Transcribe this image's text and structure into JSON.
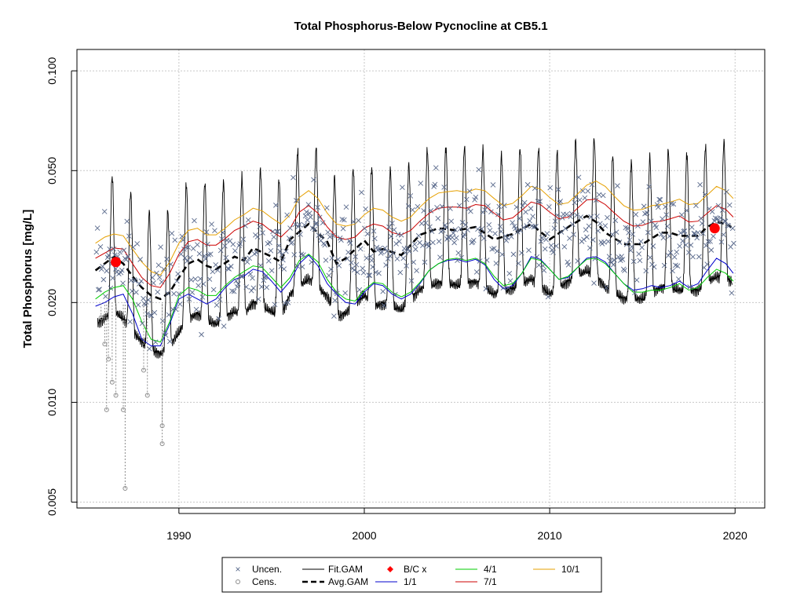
{
  "chart_data": {
    "type": "scatter",
    "title": "Total Phosphorus-Below Pycnocline at CB5.1",
    "xlabel": "",
    "ylabel": "Total Phosphorus [mg/L]",
    "y_scale": "log",
    "xlim": [
      1984.5,
      2021.6
    ],
    "ylim": [
      0.0048,
      0.116
    ],
    "x_ticks": [
      1990,
      2000,
      2010,
      2020
    ],
    "x_tick_labels": [
      "1990",
      "2000",
      "2010",
      "2020"
    ],
    "y_ticks": [
      0.005,
      0.01,
      0.02,
      0.05,
      0.1
    ],
    "y_tick_labels": [
      "0.005",
      "0.010",
      "0.020",
      "0.050",
      "0.100"
    ],
    "grid": true,
    "legend_placement": "bottom-center",
    "legend": {
      "uncen": "Uncen.",
      "cens": "Cens.",
      "fitgam": "Fit.GAM",
      "avggam": "Avg.GAM",
      "bcx": "B/C x",
      "d11": "1/1",
      "d41": "4/1",
      "d71": "7/1",
      "d101": "10/1"
    },
    "colors": {
      "uncen": "#5a6a8c",
      "cens": "#8c8c8c",
      "fitgam": "#000000",
      "avggam": "#000000",
      "bcx": "#ff0000",
      "d11": "#0000cc",
      "d41": "#00cc00",
      "d71": "#cc0000",
      "d101": "#e6a000",
      "grid": "#c8c8c8"
    },
    "bc_points": [
      {
        "x": 1986.6,
        "y": 0.0265
      },
      {
        "x": 2018.9,
        "y": 0.0335
      }
    ],
    "avg_gam": {
      "x": [
        1985.5,
        1986.5,
        1987.0,
        1987.5,
        1988.0,
        1988.5,
        1989.0,
        1989.5,
        1990.0,
        1990.5,
        1991.0,
        1991.5,
        1992.0,
        1993.0,
        1993.5,
        1994.0,
        1995.0,
        1995.5,
        1996.0,
        1997.0,
        1998.0,
        1998.5,
        1999.0,
        2000.0,
        2000.5,
        2001.0,
        2002.0,
        2003.0,
        2004.0,
        2005.0,
        2006.0,
        2007.0,
        2008.0,
        2009.0,
        2010.0,
        2011.0,
        2012.0,
        2012.5,
        2013.0,
        2014.0,
        2015.0,
        2016.0,
        2016.5,
        2017.0,
        2018.0,
        2018.5,
        2019.0,
        2019.5,
        2019.8
      ],
      "y": [
        0.025,
        0.0275,
        0.0262,
        0.024,
        0.0222,
        0.021,
        0.0205,
        0.0215,
        0.0238,
        0.0262,
        0.027,
        0.0258,
        0.0252,
        0.0275,
        0.0268,
        0.0292,
        0.0275,
        0.0265,
        0.031,
        0.0345,
        0.0305,
        0.0262,
        0.0272,
        0.0308,
        0.0285,
        0.029,
        0.0278,
        0.032,
        0.0335,
        0.033,
        0.0338,
        0.031,
        0.0322,
        0.0345,
        0.031,
        0.0338,
        0.0365,
        0.035,
        0.0325,
        0.03,
        0.03,
        0.0325,
        0.0325,
        0.0318,
        0.0318,
        0.0338,
        0.035,
        0.0345,
        0.0338
      ]
    },
    "season_curves": [
      {
        "name": "1/1",
        "x": [
          1985.5,
          1986.0,
          1986.5,
          1987.0,
          1987.5,
          1988.0,
          1988.5,
          1989.0,
          1989.5,
          1990.0,
          1990.5,
          1991.0,
          1991.5,
          1992.0,
          1992.5,
          1993.0,
          1993.5,
          1994.0,
          1994.5,
          1995.0,
          1995.5,
          1996.0,
          1996.5,
          1997.0,
          1997.5,
          1998.0,
          1998.5,
          1999.0,
          1999.5,
          2000.0,
          2000.5,
          2001.0,
          2001.5,
          2002.0,
          2002.5,
          2003.0,
          2003.5,
          2004.0,
          2004.5,
          2005.0,
          2005.5,
          2006.0,
          2006.5,
          2007.0,
          2007.5,
          2008.0,
          2008.5,
          2009.0,
          2009.5,
          2010.0,
          2010.5,
          2011.0,
          2011.5,
          2012.0,
          2012.5,
          2013.0,
          2013.5,
          2014.0,
          2014.5,
          2015.0,
          2015.5,
          2016.0,
          2016.5,
          2017.0,
          2017.5,
          2018.0,
          2018.5,
          2019.0,
          2019.5,
          2019.9
        ],
        "y": [
          0.0195,
          0.02,
          0.0208,
          0.0212,
          0.0185,
          0.0155,
          0.0148,
          0.0148,
          0.0172,
          0.0205,
          0.0212,
          0.0205,
          0.0198,
          0.0205,
          0.0222,
          0.0235,
          0.024,
          0.0252,
          0.0248,
          0.0232,
          0.0215,
          0.0232,
          0.0262,
          0.0278,
          0.0258,
          0.0228,
          0.0212,
          0.02,
          0.0198,
          0.0215,
          0.0228,
          0.0225,
          0.0212,
          0.0205,
          0.0212,
          0.0228,
          0.025,
          0.0262,
          0.0268,
          0.027,
          0.0265,
          0.027,
          0.026,
          0.0235,
          0.022,
          0.0225,
          0.0245,
          0.0275,
          0.027,
          0.0252,
          0.0235,
          0.0238,
          0.0255,
          0.0272,
          0.0275,
          0.0265,
          0.0245,
          0.0228,
          0.0218,
          0.022,
          0.0225,
          0.0222,
          0.0225,
          0.0232,
          0.0222,
          0.0228,
          0.025,
          0.0272,
          0.0262,
          0.0245
        ]
      },
      {
        "name": "4/1",
        "x": [
          1985.5,
          1986.0,
          1986.5,
          1987.0,
          1987.5,
          1988.0,
          1988.5,
          1989.0,
          1989.5,
          1990.0,
          1990.5,
          1991.0,
          1991.5,
          1992.0,
          1992.5,
          1993.0,
          1993.5,
          1994.0,
          1994.5,
          1995.0,
          1995.5,
          1996.0,
          1996.5,
          1997.0,
          1997.5,
          1998.0,
          1998.5,
          1999.0,
          1999.5,
          2000.0,
          2000.5,
          2001.0,
          2001.5,
          2002.0,
          2002.5,
          2003.0,
          2003.5,
          2004.0,
          2004.5,
          2005.0,
          2005.5,
          2006.0,
          2006.5,
          2007.0,
          2007.5,
          2008.0,
          2008.5,
          2009.0,
          2009.5,
          2010.0,
          2010.5,
          2011.0,
          2011.5,
          2012.0,
          2012.5,
          2013.0,
          2013.5,
          2014.0,
          2014.5,
          2015.0,
          2015.5,
          2016.0,
          2016.5,
          2017.0,
          2017.5,
          2018.0,
          2018.5,
          2019.0,
          2019.5,
          2019.9
        ],
        "y": [
          0.0205,
          0.0215,
          0.0222,
          0.0225,
          0.0205,
          0.0175,
          0.0155,
          0.0152,
          0.0175,
          0.021,
          0.0222,
          0.0218,
          0.021,
          0.021,
          0.0225,
          0.0238,
          0.0248,
          0.0258,
          0.0255,
          0.0238,
          0.0222,
          0.0238,
          0.0268,
          0.028,
          0.0265,
          0.0235,
          0.0215,
          0.0205,
          0.0202,
          0.0218,
          0.023,
          0.0228,
          0.0215,
          0.0208,
          0.0215,
          0.023,
          0.025,
          0.0262,
          0.027,
          0.0272,
          0.0268,
          0.0272,
          0.0262,
          0.024,
          0.0225,
          0.0228,
          0.0245,
          0.0272,
          0.0268,
          0.0252,
          0.0235,
          0.024,
          0.0255,
          0.027,
          0.0272,
          0.0262,
          0.0245,
          0.0228,
          0.0215,
          0.0215,
          0.0218,
          0.0218,
          0.0222,
          0.0228,
          0.0218,
          0.0222,
          0.0238,
          0.0252,
          0.0245,
          0.0232
        ]
      },
      {
        "name": "7/1",
        "x": [
          1985.5,
          1986.0,
          1986.5,
          1987.0,
          1987.5,
          1988.0,
          1988.5,
          1989.0,
          1989.5,
          1990.0,
          1990.5,
          1991.0,
          1991.5,
          1992.0,
          1992.5,
          1993.0,
          1993.5,
          1994.0,
          1994.5,
          1995.0,
          1995.5,
          1996.0,
          1996.5,
          1997.0,
          1997.5,
          1998.0,
          1998.5,
          1999.0,
          1999.5,
          2000.0,
          2000.5,
          2001.0,
          2001.5,
          2002.0,
          2002.5,
          2003.0,
          2003.5,
          2004.0,
          2004.5,
          2005.0,
          2005.5,
          2006.0,
          2006.5,
          2007.0,
          2007.5,
          2008.0,
          2008.5,
          2009.0,
          2009.5,
          2010.0,
          2010.5,
          2011.0,
          2011.5,
          2012.0,
          2012.5,
          2013.0,
          2013.5,
          2014.0,
          2014.5,
          2015.0,
          2015.5,
          2016.0,
          2016.5,
          2017.0,
          2017.5,
          2018.0,
          2018.5,
          2019.0,
          2019.5,
          2019.9
        ],
        "y": [
          0.0272,
          0.0282,
          0.0292,
          0.029,
          0.0262,
          0.0238,
          0.0225,
          0.0222,
          0.0245,
          0.028,
          0.0305,
          0.031,
          0.0298,
          0.0298,
          0.0312,
          0.033,
          0.034,
          0.0352,
          0.0345,
          0.0328,
          0.0315,
          0.0335,
          0.0375,
          0.0392,
          0.0372,
          0.0338,
          0.0315,
          0.031,
          0.0315,
          0.0335,
          0.0345,
          0.034,
          0.0325,
          0.032,
          0.033,
          0.0352,
          0.0372,
          0.0385,
          0.0388,
          0.0388,
          0.0385,
          0.0395,
          0.0392,
          0.0372,
          0.0355,
          0.036,
          0.038,
          0.0402,
          0.0395,
          0.0375,
          0.0358,
          0.0362,
          0.0385,
          0.0408,
          0.041,
          0.0395,
          0.0372,
          0.0352,
          0.034,
          0.0342,
          0.035,
          0.0352,
          0.0358,
          0.0365,
          0.035,
          0.0352,
          0.0372,
          0.0392,
          0.0382,
          0.0362
        ]
      },
      {
        "name": "10/1",
        "x": [
          1985.5,
          1986.0,
          1986.5,
          1987.0,
          1987.5,
          1988.0,
          1988.5,
          1989.0,
          1989.5,
          1990.0,
          1990.5,
          1991.0,
          1991.5,
          1992.0,
          1992.5,
          1993.0,
          1993.5,
          1994.0,
          1994.5,
          1995.0,
          1995.5,
          1996.0,
          1996.5,
          1997.0,
          1997.5,
          1998.0,
          1998.5,
          1999.0,
          1999.5,
          2000.0,
          2000.5,
          2001.0,
          2001.5,
          2002.0,
          2002.5,
          2003.0,
          2003.5,
          2004.0,
          2004.5,
          2005.0,
          2005.5,
          2006.0,
          2006.5,
          2007.0,
          2007.5,
          2008.0,
          2008.5,
          2009.0,
          2009.5,
          2010.0,
          2010.5,
          2011.0,
          2011.5,
          2012.0,
          2012.5,
          2013.0,
          2013.5,
          2014.0,
          2014.5,
          2015.0,
          2015.5,
          2016.0,
          2016.5,
          2017.0,
          2017.5,
          2018.0,
          2018.5,
          2019.0,
          2019.5,
          2019.9
        ],
        "y": [
          0.0302,
          0.0315,
          0.0322,
          0.0318,
          0.029,
          0.0265,
          0.0248,
          0.0242,
          0.0265,
          0.0302,
          0.033,
          0.0335,
          0.032,
          0.032,
          0.0335,
          0.0355,
          0.0368,
          0.0385,
          0.0378,
          0.036,
          0.0345,
          0.0368,
          0.0415,
          0.0435,
          0.0412,
          0.0372,
          0.0345,
          0.034,
          0.0345,
          0.0368,
          0.0385,
          0.038,
          0.0362,
          0.0352,
          0.0362,
          0.0388,
          0.0412,
          0.0428,
          0.0432,
          0.0435,
          0.043,
          0.044,
          0.0435,
          0.0412,
          0.0392,
          0.0398,
          0.042,
          0.0448,
          0.044,
          0.0415,
          0.0395,
          0.04,
          0.0425,
          0.0452,
          0.0465,
          0.0448,
          0.0418,
          0.0392,
          0.038,
          0.0382,
          0.0392,
          0.0395,
          0.0402,
          0.041,
          0.0395,
          0.0398,
          0.0422,
          0.0448,
          0.0435,
          0.0412
        ]
      }
    ],
    "uncensored_description": "about 500 scattered monthly observations, mostly between 0.014 and 0.07 mg/L",
    "censored_points": [
      {
        "x": 1985.8,
        "y": 0.018
      },
      {
        "x": 1986.0,
        "y": 0.015
      },
      {
        "x": 1986.1,
        "y": 0.0095
      },
      {
        "x": 1986.2,
        "y": 0.0135
      },
      {
        "x": 1986.4,
        "y": 0.0115
      },
      {
        "x": 1986.6,
        "y": 0.0105
      },
      {
        "x": 1987.0,
        "y": 0.0095
      },
      {
        "x": 1987.1,
        "y": 0.0055
      },
      {
        "x": 1988.1,
        "y": 0.0125
      },
      {
        "x": 1988.3,
        "y": 0.0105
      },
      {
        "x": 1989.1,
        "y": 0.0085
      },
      {
        "x": 1989.1,
        "y": 0.0075
      }
    ]
  }
}
